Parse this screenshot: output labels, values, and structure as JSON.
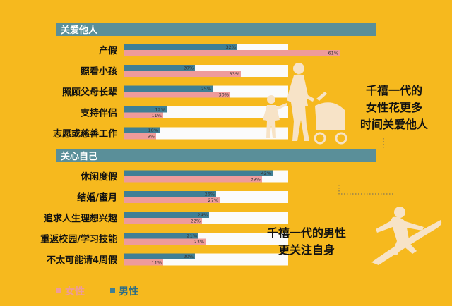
{
  "chart_data": {
    "type": "bar",
    "orientation": "horizontal",
    "sections": [
      {
        "title": "关爱他人",
        "categories": [
          "产假",
          "照看小孩",
          "照顾父母长辈",
          "支持伴侣",
          "志愿或慈善工作"
        ],
        "series": [
          {
            "name": "男性",
            "values": [
              32,
              20,
              25,
              12,
              10
            ]
          },
          {
            "name": "女性",
            "values": [
              61,
              33,
              30,
              11,
              9
            ]
          }
        ]
      },
      {
        "title": "关心自己",
        "categories": [
          "休闲度假",
          "结婚/蜜月",
          "追求人生理想兴趣",
          "重返校园/学习技能",
          "不太可能请4周假"
        ],
        "series": [
          {
            "name": "男性",
            "values": [
              42,
              26,
              24,
              21,
              20
            ]
          },
          {
            "name": "女性",
            "values": [
              39,
              27,
              22,
              23,
              11
            ]
          }
        ]
      }
    ],
    "value_suffix": "%",
    "xlim": [
      0,
      70
    ],
    "legend": {
      "position": "bottom-left",
      "items": [
        "女性",
        "男性"
      ]
    },
    "annotations": [
      [
        "千禧一代的",
        "女性花更多",
        "时间关爱他人"
      ],
      [
        "千禧一代的男性",
        "更关注自身"
      ]
    ],
    "colors": {
      "background": "#F6B91E",
      "male": "#3F7F95",
      "female": "#EE9B9B",
      "header_bar": "#5A8F99",
      "track": "#FBFBFB",
      "silhouette": "#F7E3C7"
    }
  }
}
